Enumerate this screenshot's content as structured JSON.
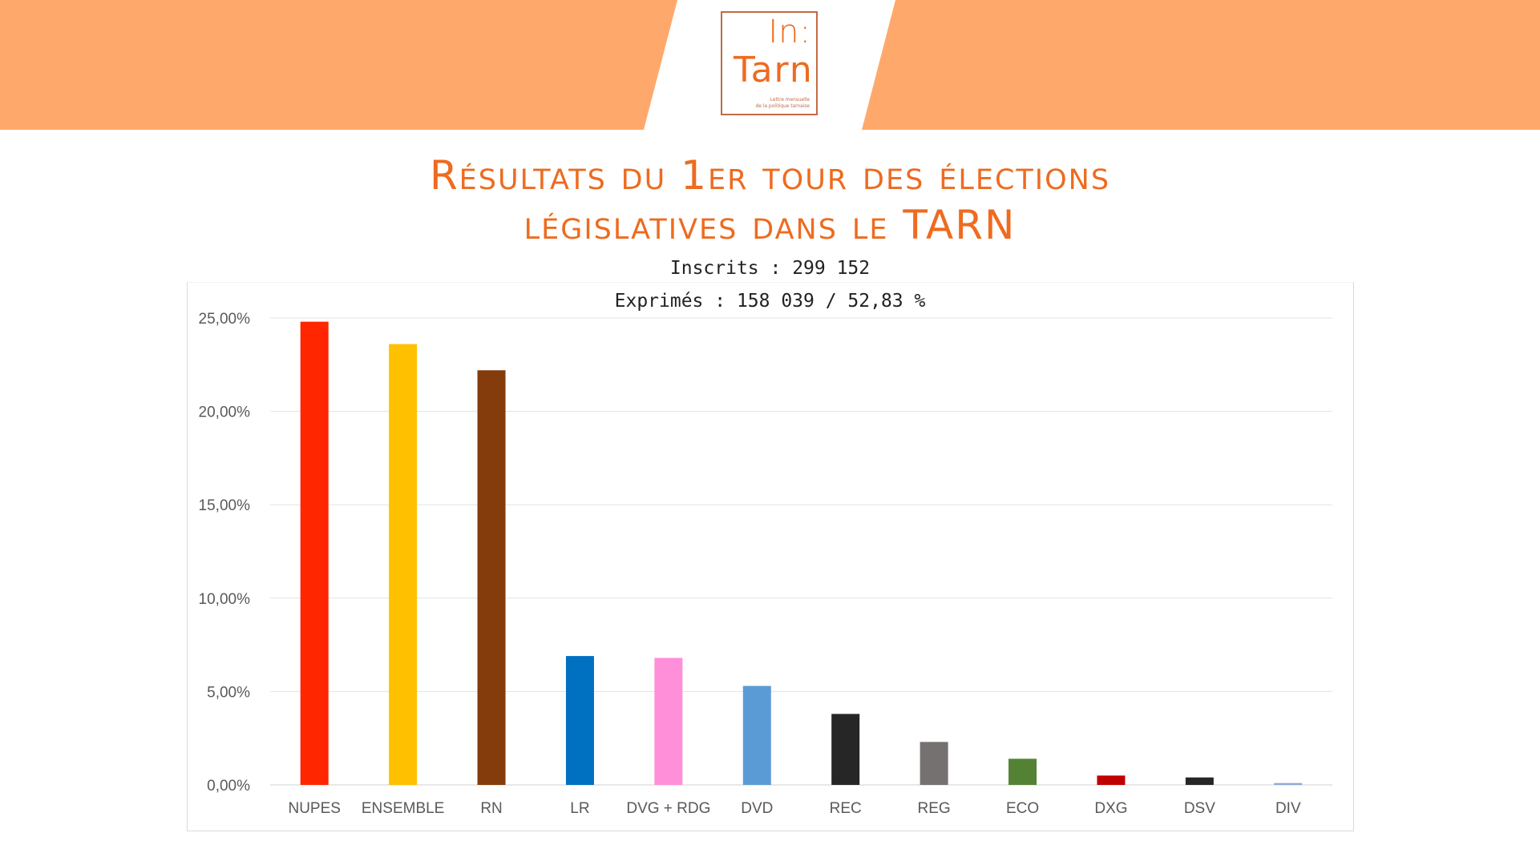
{
  "header": {
    "band_color": "#fea96b",
    "logo": {
      "top": "In:",
      "main": "Tarn",
      "tagline_line1": "Lettre mensuelle",
      "tagline_line2": "de la politique tarnaise",
      "color": "#ee6b1f",
      "border_color": "#c26a47"
    }
  },
  "title_line1": "Résultats du 1er tour des élections",
  "title_line2": "législatives dans le TARN",
  "subtitle_line1": "Inscrits : 299 152",
  "subtitle_line2": "Exprimés : 158 039 / 52,83 %",
  "chart_data": {
    "type": "bar",
    "categories": [
      "NUPES",
      "ENSEMBLE",
      "RN",
      "LR",
      "DVG + RDG",
      "DVD",
      "REC",
      "REG",
      "ECO",
      "DXG",
      "DSV",
      "DIV"
    ],
    "values": [
      24.8,
      23.6,
      22.2,
      6.9,
      6.8,
      5.3,
      3.8,
      2.3,
      1.4,
      0.5,
      0.4,
      0.1
    ],
    "colors": [
      "#ff2600",
      "#ffc000",
      "#843c0c",
      "#0070c0",
      "#ff8fd8",
      "#5b9bd5",
      "#262626",
      "#767171",
      "#548235",
      "#c00000",
      "#262626",
      "#8faadc"
    ],
    "ylim": [
      0,
      25
    ],
    "yticks": [
      0,
      5,
      10,
      15,
      20,
      25
    ],
    "ytick_labels": [
      "0,00%",
      "5,00%",
      "10,00%",
      "15,00%",
      "20,00%",
      "25,00%"
    ],
    "grid": true,
    "legend": "none"
  }
}
